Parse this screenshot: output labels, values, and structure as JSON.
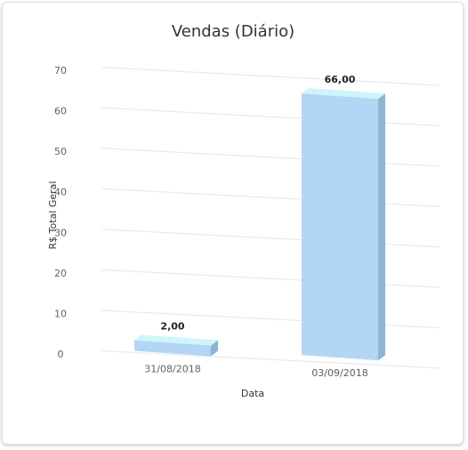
{
  "chart_data": {
    "type": "bar",
    "title": "Vendas (Diário)",
    "xlabel": "Data",
    "ylabel": "R$ Total Geral",
    "categories": [
      "31/08/2018",
      "03/09/2018"
    ],
    "values": [
      2,
      66
    ],
    "data_labels": [
      "2,00",
      "66,00"
    ],
    "ylim": [
      0,
      70
    ],
    "yticks": [
      0,
      10,
      20,
      30,
      40,
      50,
      60,
      70
    ],
    "grid": true,
    "style": "3d-column",
    "colors": {
      "bar_front": "#b3d6f5",
      "bar_side": "#8fb3d0",
      "bar_top": "#cdf5fb",
      "grid": "#e6e6e6"
    }
  }
}
